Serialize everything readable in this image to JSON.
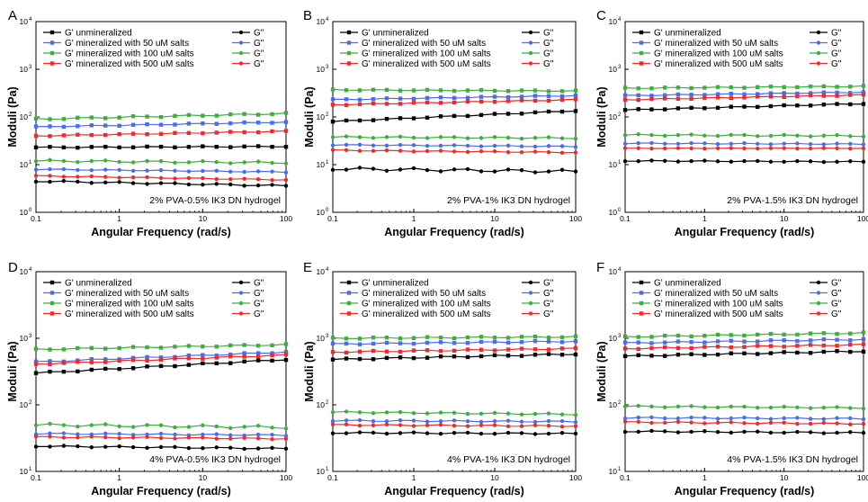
{
  "figure": {
    "legend_labels": [
      "G' unmineralized",
      "G' mineralized with 50 uM salts",
      "G' mineralized with 100 uM salts",
      "G' mineralized with 500 uM salts"
    ],
    "loss_label": "G\"",
    "colors": [
      "#000000",
      "#4a6cf0",
      "#3fae3f",
      "#ee2b2b"
    ],
    "xlabel": "Angular Frequency (rad/s)",
    "ylabel": "Moduli (Pa)"
  },
  "chart_data": [
    {
      "type": "line",
      "panel": "A",
      "annotation": "2% PVA-0.5% IK3 DN hydrogel",
      "x_scale": "log",
      "y_scale": "log",
      "xlim": [
        0.1,
        100
      ],
      "ylim": [
        1,
        10000
      ],
      "x_ticks": [
        "0.1",
        "1",
        "10",
        "100"
      ],
      "y_ticks": [
        "10",
        "10",
        "10",
        "10",
        "10"
      ],
      "y_tick_exponents": [
        "0",
        "1",
        "2",
        "3",
        "4"
      ],
      "xlabel": "Angular Frequency (rad/s)",
      "ylabel": "Moduli (Pa)",
      "series": [
        {
          "name": "G' unmineralized",
          "start": 23,
          "end": 24,
          "wobble": 0.01
        },
        {
          "name": "G' mineralized with 50 uM salts",
          "start": 62,
          "end": 78,
          "wobble": 0.01
        },
        {
          "name": "G' mineralized with 100 uM salts",
          "start": 90,
          "end": 118,
          "wobble": 0.015
        },
        {
          "name": "G' mineralized with 500 uM salts",
          "start": 40,
          "end": 50,
          "wobble": 0.01
        },
        {
          "name": "G\"",
          "start": 4.5,
          "end": 3.6,
          "wobble": 0.015
        },
        {
          "name": "G\"",
          "start": 8,
          "end": 7,
          "wobble": 0.01
        },
        {
          "name": "G\"",
          "start": 12,
          "end": 11,
          "wobble": 0.02
        },
        {
          "name": "G\"",
          "start": 5.8,
          "end": 4.8,
          "wobble": 0.01
        }
      ]
    },
    {
      "type": "line",
      "panel": "B",
      "annotation": "2% PVA-1% IK3 DN hydrogel",
      "x_scale": "log",
      "y_scale": "log",
      "xlim": [
        0.1,
        100
      ],
      "ylim": [
        1,
        10000
      ],
      "x_ticks": [
        "0.1",
        "1",
        "10",
        "100"
      ],
      "y_ticks": [
        "10",
        "10",
        "10",
        "10",
        "10"
      ],
      "y_tick_exponents": [
        "0",
        "1",
        "2",
        "3",
        "4"
      ],
      "xlabel": "Angular Frequency (rad/s)",
      "ylabel": "Moduli (Pa)",
      "series": [
        {
          "name": "G' unmineralized",
          "start": 80,
          "end": 135,
          "wobble": 0.01
        },
        {
          "name": "G' mineralized with 50 uM salts",
          "start": 230,
          "end": 280,
          "wobble": 0.01
        },
        {
          "name": "G' mineralized with 100 uM salts",
          "start": 370,
          "end": 350,
          "wobble": 0.01
        },
        {
          "name": "G' mineralized with 500 uM salts",
          "start": 180,
          "end": 230,
          "wobble": 0.01
        },
        {
          "name": "G\"",
          "start": 8.2,
          "end": 7.2,
          "wobble": 0.03
        },
        {
          "name": "G\"",
          "start": 26,
          "end": 24,
          "wobble": 0.01
        },
        {
          "name": "G\"",
          "start": 38,
          "end": 36,
          "wobble": 0.015
        },
        {
          "name": "G\"",
          "start": 20,
          "end": 18,
          "wobble": 0.01
        }
      ]
    },
    {
      "type": "line",
      "panel": "C",
      "annotation": "2% PVA-1.5% IK3 DN hydrogel",
      "x_scale": "log",
      "y_scale": "log",
      "xlim": [
        0.1,
        100
      ],
      "ylim": [
        1,
        10000
      ],
      "x_ticks": [
        "0.1",
        "1",
        "10",
        "100"
      ],
      "y_ticks": [
        "10",
        "10",
        "10",
        "10",
        "10"
      ],
      "y_tick_exponents": [
        "0",
        "1",
        "2",
        "3",
        "4"
      ],
      "xlabel": "Angular Frequency (rad/s)",
      "ylabel": "Moduli (Pa)",
      "series": [
        {
          "name": "G' unmineralized",
          "start": 140,
          "end": 190,
          "wobble": 0.01
        },
        {
          "name": "G' mineralized with 50 uM salts",
          "start": 280,
          "end": 330,
          "wobble": 0.01
        },
        {
          "name": "G' mineralized with 100 uM salts",
          "start": 400,
          "end": 440,
          "wobble": 0.01
        },
        {
          "name": "G' mineralized with 500 uM salts",
          "start": 230,
          "end": 290,
          "wobble": 0.01
        },
        {
          "name": "G\"",
          "start": 12,
          "end": 11.5,
          "wobble": 0.01
        },
        {
          "name": "G\"",
          "start": 28,
          "end": 27,
          "wobble": 0.01
        },
        {
          "name": "G\"",
          "start": 42,
          "end": 40,
          "wobble": 0.015
        },
        {
          "name": "G\"",
          "start": 22,
          "end": 22,
          "wobble": 0.005
        }
      ]
    },
    {
      "type": "line",
      "panel": "D",
      "annotation": "4% PVA-0.5% IK3 DN hydrogel",
      "x_scale": "log",
      "y_scale": "log",
      "xlim": [
        0.1,
        100
      ],
      "ylim": [
        10,
        10000
      ],
      "x_ticks": [
        "0.1",
        "1",
        "10",
        "100"
      ],
      "y_ticks": [
        "10",
        "10",
        "10",
        "10"
      ],
      "y_tick_exponents": [
        "1",
        "2",
        "3",
        "4"
      ],
      "xlabel": "Angular Frequency (rad/s)",
      "ylabel": "Moduli (Pa)",
      "series": [
        {
          "name": "G' unmineralized",
          "start": 300,
          "end": 480,
          "wobble": 0.01
        },
        {
          "name": "G' mineralized with 50 uM salts",
          "start": 440,
          "end": 620,
          "wobble": 0.01
        },
        {
          "name": "G' mineralized with 100 uM salts",
          "start": 680,
          "end": 800,
          "wobble": 0.01
        },
        {
          "name": "G' mineralized with 500 uM salts",
          "start": 410,
          "end": 560,
          "wobble": 0.01
        },
        {
          "name": "G\"",
          "start": 24,
          "end": 22,
          "wobble": 0.01
        },
        {
          "name": "G\"",
          "start": 37,
          "end": 35,
          "wobble": 0.01
        },
        {
          "name": "G\"",
          "start": 50,
          "end": 46,
          "wobble": 0.02
        },
        {
          "name": "G\"",
          "start": 33,
          "end": 31,
          "wobble": 0.01
        }
      ]
    },
    {
      "type": "line",
      "panel": "E",
      "annotation": "4% PVA-1% IK3 DN hydrogel",
      "x_scale": "log",
      "y_scale": "log",
      "xlim": [
        0.1,
        100
      ],
      "ylim": [
        10,
        10000
      ],
      "x_ticks": [
        "0.1",
        "1",
        "10",
        "100"
      ],
      "y_ticks": [
        "10",
        "10",
        "10",
        "10"
      ],
      "y_tick_exponents": [
        "1",
        "2",
        "3",
        "4"
      ],
      "xlabel": "Angular Frequency (rad/s)",
      "ylabel": "Moduli (Pa)",
      "series": [
        {
          "name": "G' unmineralized",
          "start": 480,
          "end": 580,
          "wobble": 0.01
        },
        {
          "name": "G' mineralized with 50 uM salts",
          "start": 820,
          "end": 900,
          "wobble": 0.01
        },
        {
          "name": "G' mineralized with 100 uM salts",
          "start": 1000,
          "end": 1050,
          "wobble": 0.01
        },
        {
          "name": "G' mineralized with 500 uM salts",
          "start": 620,
          "end": 700,
          "wobble": 0.01
        },
        {
          "name": "G\"",
          "start": 38,
          "end": 37,
          "wobble": 0.01
        },
        {
          "name": "G\"",
          "start": 58,
          "end": 56,
          "wobble": 0.01
        },
        {
          "name": "G\"",
          "start": 78,
          "end": 72,
          "wobble": 0.01
        },
        {
          "name": "G\"",
          "start": 50,
          "end": 48,
          "wobble": 0.01
        }
      ]
    },
    {
      "type": "line",
      "panel": "F",
      "annotation": "4% PVA-1.5% IK3 DN hydrogel",
      "x_scale": "log",
      "y_scale": "log",
      "xlim": [
        0.1,
        100
      ],
      "ylim": [
        10,
        10000
      ],
      "x_ticks": [
        "0.1",
        "1",
        "10",
        "100"
      ],
      "y_ticks": [
        "10",
        "10",
        "10",
        "10"
      ],
      "y_tick_exponents": [
        "1",
        "2",
        "3",
        "4"
      ],
      "xlabel": "Angular Frequency (rad/s)",
      "ylabel": "Moduli (Pa)",
      "series": [
        {
          "name": "G' unmineralized",
          "start": 540,
          "end": 640,
          "wobble": 0.01
        },
        {
          "name": "G' mineralized with 50 uM salts",
          "start": 850,
          "end": 960,
          "wobble": 0.01
        },
        {
          "name": "G' mineralized with 100 uM salts",
          "start": 1050,
          "end": 1200,
          "wobble": 0.01
        },
        {
          "name": "G' mineralized with 500 uM salts",
          "start": 700,
          "end": 800,
          "wobble": 0.01
        },
        {
          "name": "G\"",
          "start": 40,
          "end": 38,
          "wobble": 0.01
        },
        {
          "name": "G\"",
          "start": 64,
          "end": 62,
          "wobble": 0.01
        },
        {
          "name": "G\"",
          "start": 95,
          "end": 90,
          "wobble": 0.01
        },
        {
          "name": "G\"",
          "start": 55,
          "end": 52,
          "wobble": 0.01
        }
      ]
    }
  ]
}
